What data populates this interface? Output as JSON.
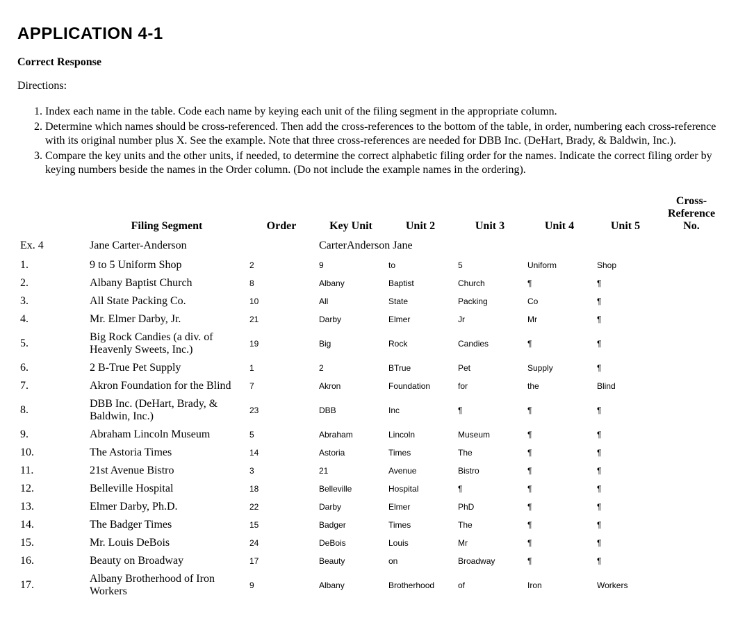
{
  "title": "APPLICATION 4-1",
  "subtitle": "Correct Response",
  "directions_label": "Directions:",
  "directions": [
    "Index each name in the table. Code each name by keying each unit of the filing segment in the appropriate column.",
    "Determine which names should be cross-referenced. Then add the cross-references to the bottom of the table, in order, numbering each cross-reference with its original number plus X. See the example. Note that three cross-references are needed for DBB Inc. (DeHart, Brady, & Baldwin, Inc.).",
    "Compare the key units and the other units, if needed, to determine the correct alphabetic filing order for the names. Indicate the correct filing order by keying numbers beside the names in the Order column. (Do not include the example names in the ordering)."
  ],
  "headers": {
    "filing_segment": "Filing Segment",
    "order": "Order",
    "key_unit": "Key Unit",
    "unit2": "Unit 2",
    "unit3": "Unit 3",
    "unit4": "Unit 4",
    "unit5": "Unit 5",
    "cross_ref": "Cross-Reference No."
  },
  "example": {
    "num": "Ex. 4",
    "segment": "Jane Carter-Anderson",
    "key_unit": "CarterAnderson Jane"
  },
  "rows": [
    {
      "num": "1.",
      "segment": "9 to 5 Uniform Shop",
      "order": "2",
      "key": "9",
      "u2": "to",
      "u3": "5",
      "u4": "Uniform",
      "u5": "Shop"
    },
    {
      "num": "2.",
      "segment": "Albany Baptist Church",
      "order": "8",
      "key": "Albany",
      "u2": "Baptist",
      "u3": "Church",
      "u4": "¶",
      "u5": "¶"
    },
    {
      "num": "3.",
      "segment": "All State Packing Co.",
      "order": "10",
      "key": "All",
      "u2": "State",
      "u3": "Packing",
      "u4": "Co",
      "u5": "¶"
    },
    {
      "num": "4.",
      "segment": "Mr. Elmer Darby, Jr.",
      "order": "21",
      "key": "Darby",
      "u2": "Elmer",
      "u3": "Jr",
      "u4": "Mr",
      "u5": "¶"
    },
    {
      "num": "5.",
      "segment": "Big Rock Candies (a div. of Heavenly Sweets, Inc.)",
      "order": "19",
      "key": "Big",
      "u2": "Rock",
      "u3": "Candies",
      "u4": "¶",
      "u5": "¶"
    },
    {
      "num": "6.",
      "segment": "2 B-True Pet Supply",
      "order": "1",
      "key": "2",
      "u2": "BTrue",
      "u3": "Pet",
      "u4": "Supply",
      "u5": "¶"
    },
    {
      "num": "7.",
      "segment": "Akron Foundation for the Blind",
      "order": "7",
      "key": "Akron",
      "u2": "Foundation",
      "u3": "for",
      "u4": "the",
      "u5": "Blind"
    },
    {
      "num": "8.",
      "segment": "DBB Inc. (DeHart, Brady, & Baldwin, Inc.)",
      "order": "23",
      "key": "DBB",
      "u2": "Inc",
      "u3": "¶",
      "u4": "¶",
      "u5": "¶"
    },
    {
      "num": "9.",
      "segment": "Abraham Lincoln Museum",
      "order": "5",
      "key": "Abraham",
      "u2": "Lincoln",
      "u3": "Museum",
      "u4": "¶",
      "u5": "¶"
    },
    {
      "num": "10.",
      "segment": "The Astoria Times",
      "order": "14",
      "key": "Astoria",
      "u2": "Times",
      "u3": "The",
      "u4": "¶",
      "u5": "¶"
    },
    {
      "num": "11.",
      "segment": "21st Avenue Bistro",
      "order": "3",
      "key": "21",
      "u2": "Avenue",
      "u3": "Bistro",
      "u4": "¶",
      "u5": "¶"
    },
    {
      "num": "12.",
      "segment": "Belleville Hospital",
      "order": "18",
      "key": "Belleville",
      "u2": "Hospital",
      "u3": "¶",
      "u4": "¶",
      "u5": "¶"
    },
    {
      "num": "13.",
      "segment": "Elmer Darby, Ph.D.",
      "order": "22",
      "key": "Darby",
      "u2": "Elmer",
      "u3": "PhD",
      "u4": "¶",
      "u5": "¶"
    },
    {
      "num": "14.",
      "segment": "The Badger Times",
      "order": "15",
      "key": "Badger",
      "u2": "Times",
      "u3": "The",
      "u4": "¶",
      "u5": "¶"
    },
    {
      "num": "15.",
      "segment": "Mr. Louis DeBois",
      "order": "24",
      "key": "DeBois",
      "u2": "Louis",
      "u3": "Mr",
      "u4": "¶",
      "u5": "¶"
    },
    {
      "num": "16.",
      "segment": "Beauty on Broadway",
      "order": "17",
      "key": "Beauty",
      "u2": "on",
      "u3": "Broadway",
      "u4": "¶",
      "u5": "¶"
    },
    {
      "num": "17.",
      "segment": "Albany Brotherhood of Iron Workers",
      "order": "9",
      "key": "Albany",
      "u2": "Brotherhood",
      "u3": "of",
      "u4": "Iron",
      "u5": "Workers"
    }
  ]
}
